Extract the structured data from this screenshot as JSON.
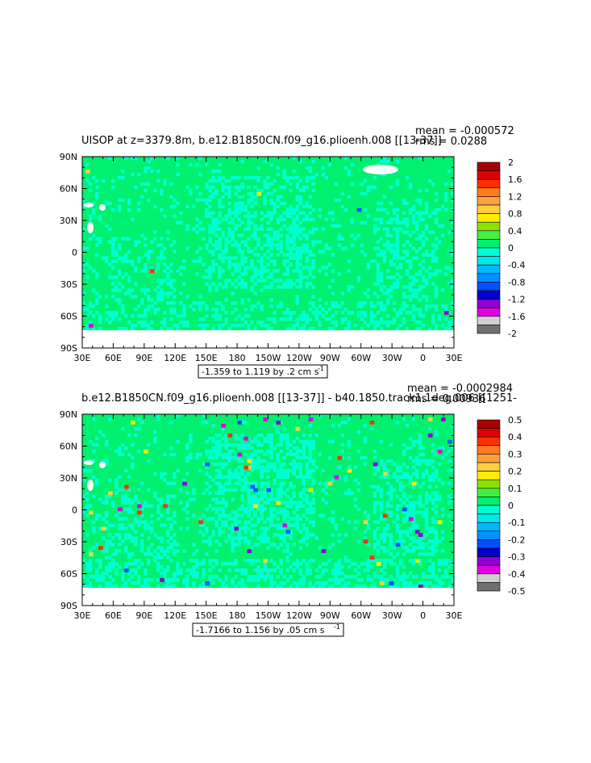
{
  "chart_data": [
    {
      "type": "heatmap",
      "title": "UISOP at z=3379.8m, b.e12.B1850CN.f09_g16.plioenh.008 [[13-37]]",
      "stats": {
        "mean": "mean = -0.000572",
        "rms": "rms = 0.0288"
      },
      "xticks": [
        "30E",
        "60E",
        "90E",
        "120E",
        "150E",
        "180",
        "150W",
        "120W",
        "90W",
        "60W",
        "30W",
        "0",
        "30E"
      ],
      "yticks": [
        "90N",
        "60N",
        "30N",
        "0",
        "30S",
        "60S",
        "90S"
      ],
      "xlim": [
        30,
        390
      ],
      "ylim": [
        -90,
        90
      ],
      "range_label": "-1.359 to 1.119 by .2 cm s",
      "range_superscript": "-1",
      "colorbar": {
        "labels": [
          "2",
          "1.6",
          "1.2",
          "0.8",
          "0.4",
          "0",
          "-0.4",
          "-0.8",
          "-1.2",
          "-1.6",
          "-2"
        ],
        "colors": [
          "#a80000",
          "#e00000",
          "#ff3000",
          "#ff7a20",
          "#ffa040",
          "#ffcf40",
          "#ffee00",
          "#8ee000",
          "#44ee44",
          "#00f070",
          "#00ffd0",
          "#00e8e8",
          "#00b8ff",
          "#0090ff",
          "#0050ff",
          "#0000d0",
          "#9000d0",
          "#e000e0",
          "#d0d0d0",
          "#707070"
        ]
      }
    },
    {
      "type": "heatmap",
      "title": "b.e12.B1850CN.f09_g16.plioenh.008 [[13-37]] - b40.1850.track1.1deg.006 [[1251-",
      "stats": {
        "mean": "mean = -0.0002984",
        "rms": "rms = 0.00936"
      },
      "xticks": [
        "30E",
        "60E",
        "90E",
        "120E",
        "150E",
        "180",
        "150W",
        "120W",
        "90W",
        "60W",
        "30W",
        "0",
        "30E"
      ],
      "yticks": [
        "90N",
        "60N",
        "30N",
        "0",
        "30S",
        "60S",
        "90S"
      ],
      "xlim": [
        30,
        390
      ],
      "ylim": [
        -90,
        90
      ],
      "range_label": "-1.7166 to 1.156 by .05 cm s",
      "range_superscript": "-1",
      "colorbar": {
        "labels": [
          "0.5",
          "0.4",
          "0.3",
          "0.2",
          "0.1",
          "0",
          "-0.1",
          "-0.2",
          "-0.3",
          "-0.4",
          "-0.5"
        ],
        "colors": [
          "#a80000",
          "#e00000",
          "#ff3000",
          "#ff7a20",
          "#ffa040",
          "#ffcf40",
          "#ffee00",
          "#8ee000",
          "#44ee44",
          "#00f070",
          "#00ffd0",
          "#00e8e8",
          "#00b8ff",
          "#0090ff",
          "#0050ff",
          "#0000d0",
          "#9000d0",
          "#e000e0",
          "#d0d0d0",
          "#707070"
        ]
      }
    }
  ],
  "colors": {
    "ocean_base": "#00f070",
    "ocean_alt": "#00ffd0",
    "land": "#ffffff"
  }
}
